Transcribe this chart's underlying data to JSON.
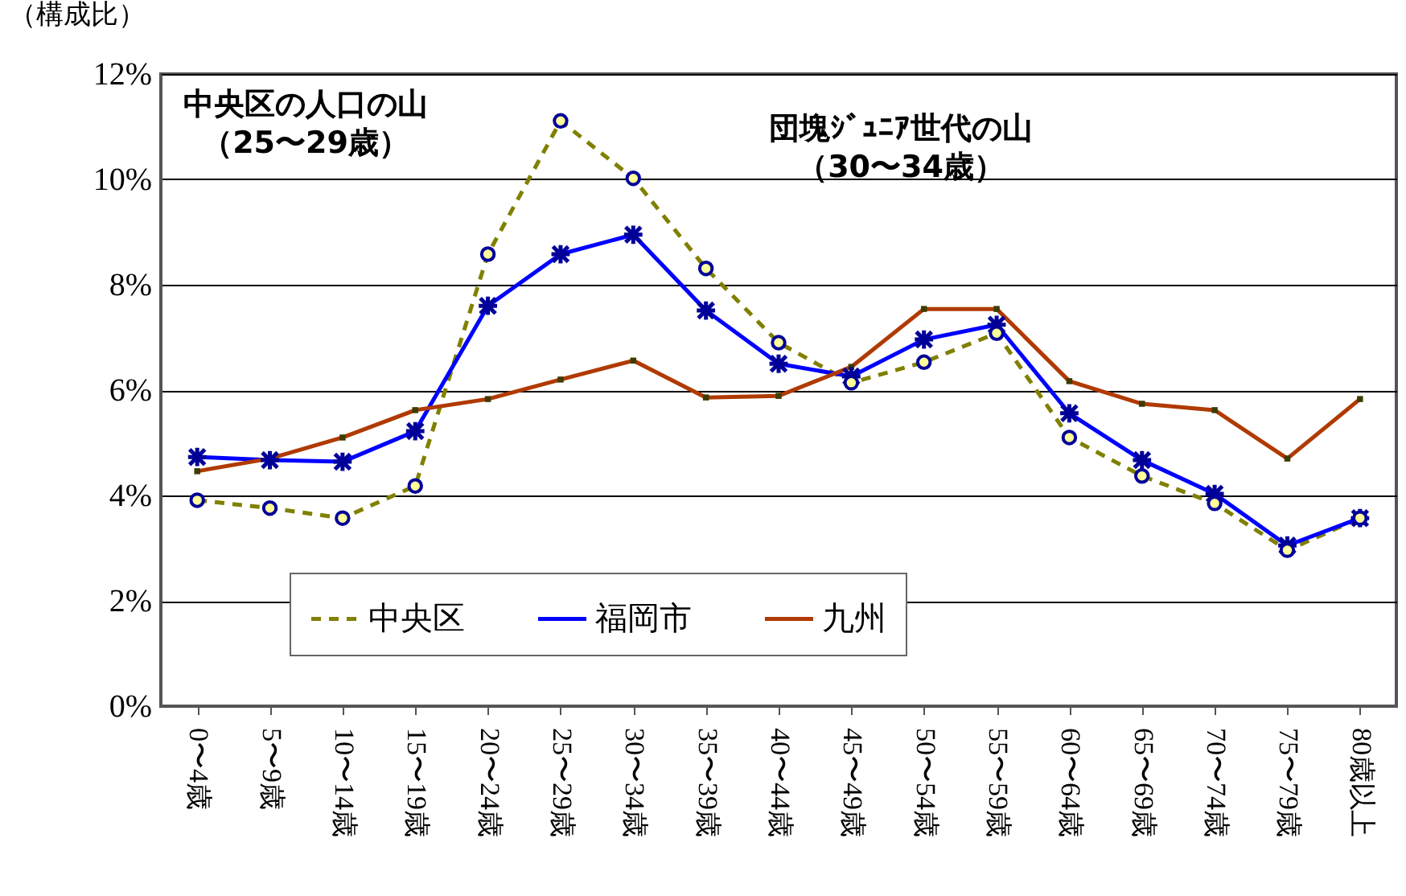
{
  "chart_data": {
    "type": "line",
    "ylabel": "（構成比）",
    "categories": [
      "0〜4歳",
      "5〜9歳",
      "10〜14歳",
      "15〜19歳",
      "20〜24歳",
      "25〜29歳",
      "30〜34歳",
      "35〜39歳",
      "40〜44歳",
      "45〜49歳",
      "50〜54歳",
      "55〜59歳",
      "60〜64歳",
      "65〜69歳",
      "70〜74歳",
      "75〜79歳",
      "80歳以上"
    ],
    "series": [
      {
        "name": "中央区",
        "color": "#808000",
        "marker": "circle",
        "line_style": "dashed",
        "values": [
          3.91,
          3.76,
          3.57,
          4.18,
          8.58,
          11.11,
          10.02,
          8.31,
          6.9,
          6.14,
          6.53,
          7.08,
          5.1,
          4.37,
          3.85,
          2.96,
          3.57
        ]
      },
      {
        "name": "福岡市",
        "color": "#0000ff",
        "marker": "cross",
        "line_style": "solid",
        "values": [
          4.73,
          4.67,
          4.64,
          5.22,
          7.6,
          8.58,
          8.95,
          7.51,
          6.5,
          6.26,
          6.96,
          7.24,
          5.56,
          4.67,
          4.03,
          3.05,
          3.57
        ]
      },
      {
        "name": "九州",
        "color": "#b03a00",
        "marker": "square",
        "line_style": "solid",
        "values": [
          4.46,
          4.7,
          5.1,
          5.62,
          5.83,
          6.2,
          6.56,
          5.86,
          5.89,
          6.44,
          7.54,
          7.54,
          6.17,
          5.74,
          5.62,
          4.7,
          5.83
        ]
      }
    ],
    "ylim": [
      0,
      12
    ],
    "yticks": [
      {
        "value": 0,
        "label": "0%"
      },
      {
        "value": 2,
        "label": "2%"
      },
      {
        "value": 4,
        "label": "4%"
      },
      {
        "value": 6,
        "label": "6%"
      },
      {
        "value": 8,
        "label": "8%"
      },
      {
        "value": 10,
        "label": "10%"
      },
      {
        "value": 12,
        "label": "12%"
      }
    ],
    "grid": "y",
    "legend": "bottom",
    "annotations": [
      "中央区の人口の山（25〜29歳）",
      "団塊ｼﾞｭﾆｱ世代の山（30〜34歳）"
    ]
  }
}
